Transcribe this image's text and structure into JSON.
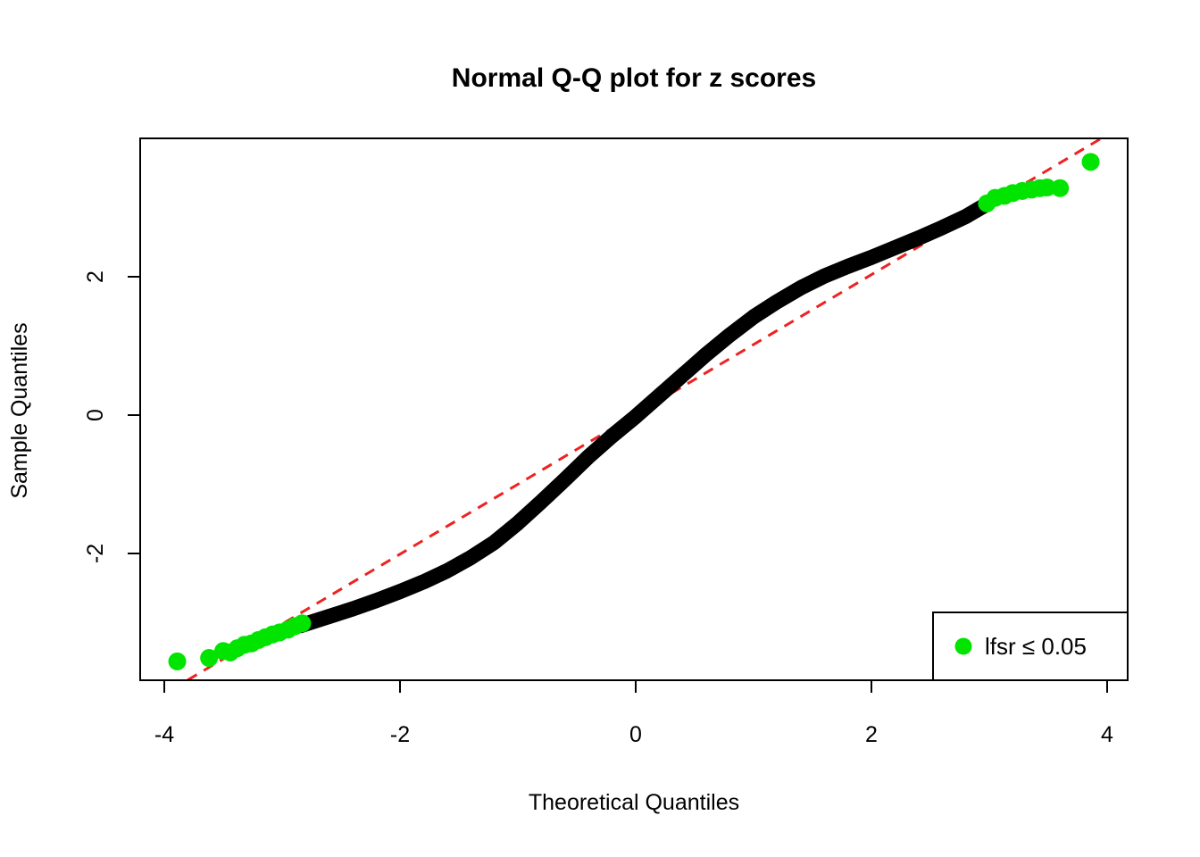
{
  "title": "Normal Q-Q plot for z scores",
  "axes": {
    "xlabel": "Theoretical Quantiles",
    "ylabel": "Sample Quantiles"
  },
  "legend": {
    "label": "lfsr ≤ 0.05",
    "marker": "filled-circle",
    "marker_color": "#00E400"
  },
  "colors": {
    "background": "#FFFFFF",
    "points_main": "#000000",
    "points_significant": "#00E400",
    "reference_line": "#EE2222",
    "axis": "#000000",
    "text": "#000000"
  },
  "chart_data": {
    "type": "scatter",
    "subtype": "qq-plot",
    "title": "Normal Q-Q plot for z scores",
    "xlabel": "Theoretical Quantiles",
    "ylabel": "Sample Quantiles",
    "xlim": [
      -4.2,
      4.17
    ],
    "ylim": [
      -3.83,
      4.0
    ],
    "x_ticks": [
      -4,
      -2,
      0,
      2,
      4
    ],
    "y_ticks": [
      -2,
      0,
      2
    ],
    "grid": false,
    "legend_position": "bottom-right",
    "reference_line": {
      "style": "dashed",
      "color": "#EE2222",
      "slope": 1.01,
      "intercept": 0.01,
      "description": "qqline through sample quartiles, approximately y = x"
    },
    "series": [
      {
        "name": "z scores (dense band, lfsr > 0.05)",
        "color": "#000000",
        "render": "thick-band",
        "points": [
          [
            -2.84,
            -3.04
          ],
          [
            -2.6,
            -2.91
          ],
          [
            -2.4,
            -2.8
          ],
          [
            -2.2,
            -2.68
          ],
          [
            -2.0,
            -2.55
          ],
          [
            -1.8,
            -2.41
          ],
          [
            -1.6,
            -2.25
          ],
          [
            -1.4,
            -2.06
          ],
          [
            -1.2,
            -1.84
          ],
          [
            -1.0,
            -1.56
          ],
          [
            -0.8,
            -1.25
          ],
          [
            -0.6,
            -0.93
          ],
          [
            -0.4,
            -0.6
          ],
          [
            -0.2,
            -0.3
          ],
          [
            0.0,
            -0.02
          ],
          [
            0.2,
            0.28
          ],
          [
            0.4,
            0.58
          ],
          [
            0.6,
            0.88
          ],
          [
            0.8,
            1.16
          ],
          [
            1.0,
            1.42
          ],
          [
            1.2,
            1.64
          ],
          [
            1.4,
            1.84
          ],
          [
            1.6,
            2.01
          ],
          [
            1.8,
            2.15
          ],
          [
            2.0,
            2.28
          ],
          [
            2.2,
            2.42
          ],
          [
            2.4,
            2.56
          ],
          [
            2.6,
            2.71
          ],
          [
            2.8,
            2.87
          ],
          [
            2.98,
            3.05
          ]
        ]
      },
      {
        "name": "lfsr ≤ 0.05",
        "color": "#00E400",
        "render": "points",
        "points": [
          [
            -3.89,
            -3.56
          ],
          [
            -3.62,
            -3.51
          ],
          [
            -3.5,
            -3.41
          ],
          [
            -3.44,
            -3.43
          ],
          [
            -3.38,
            -3.37
          ],
          [
            -3.32,
            -3.32
          ],
          [
            -3.26,
            -3.3
          ],
          [
            -3.2,
            -3.25
          ],
          [
            -3.14,
            -3.21
          ],
          [
            -3.08,
            -3.17
          ],
          [
            -3.02,
            -3.14
          ],
          [
            -2.95,
            -3.1
          ],
          [
            -2.89,
            -3.05
          ],
          [
            -2.83,
            -3.01
          ],
          [
            2.98,
            3.06
          ],
          [
            3.05,
            3.14
          ],
          [
            3.13,
            3.17
          ],
          [
            3.2,
            3.21
          ],
          [
            3.28,
            3.24
          ],
          [
            3.36,
            3.26
          ],
          [
            3.43,
            3.28
          ],
          [
            3.49,
            3.29
          ],
          [
            3.6,
            3.28
          ],
          [
            3.86,
            3.66
          ]
        ]
      }
    ]
  }
}
